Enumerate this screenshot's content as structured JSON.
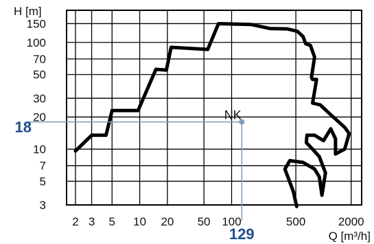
{
  "chart_data": {
    "type": "line",
    "title": "",
    "xlabel": "Q [m³/h]",
    "ylabel": "H [m]",
    "x_scale": "log",
    "y_scale": "log",
    "xlim": [
      1.6,
      2600
    ],
    "ylim": [
      3,
      200
    ],
    "grid": true,
    "x_ticks": [
      {
        "value": 2,
        "label": "2"
      },
      {
        "value": 3,
        "label": "3"
      },
      {
        "value": 5,
        "label": "5"
      },
      {
        "value": 10,
        "label": "10"
      },
      {
        "value": 20,
        "label": "20"
      },
      {
        "value": 50,
        "label": "50"
      },
      {
        "value": 100,
        "label": "100"
      },
      {
        "value": 500,
        "label": "500"
      },
      {
        "value": 2000,
        "label": "2000"
      }
    ],
    "y_ticks": [
      {
        "value": 3,
        "label": "3"
      },
      {
        "value": 5,
        "label": "5"
      },
      {
        "value": 7,
        "label": "7"
      },
      {
        "value": 10,
        "label": "10"
      },
      {
        "value": 20,
        "label": "20"
      },
      {
        "value": 30,
        "label": "30"
      },
      {
        "value": 50,
        "label": "50"
      },
      {
        "value": 70,
        "label": "70"
      },
      {
        "value": 100,
        "label": "100"
      },
      {
        "value": 150,
        "label": "150"
      }
    ],
    "series": [
      {
        "name": "NK",
        "color": "#000000",
        "closed": false,
        "points": [
          [
            2,
            9.6
          ],
          [
            3,
            13.5
          ],
          [
            4.3,
            13.5
          ],
          [
            5,
            23
          ],
          [
            9.6,
            23
          ],
          [
            15,
            56
          ],
          [
            19.5,
            55
          ],
          [
            22,
            90
          ],
          [
            55,
            86
          ],
          [
            72,
            150
          ],
          [
            165,
            147
          ],
          [
            260,
            135
          ],
          [
            400,
            134
          ],
          [
            520,
            127
          ],
          [
            600,
            113
          ],
          [
            640,
            97
          ],
          [
            720,
            94
          ],
          [
            800,
            73
          ],
          [
            740,
            47
          ],
          [
            760,
            45
          ],
          [
            840,
            45
          ],
          [
            760,
            27
          ],
          [
            920,
            26
          ],
          [
            1200,
            21
          ],
          [
            1700,
            16
          ],
          [
            1900,
            14
          ],
          [
            1700,
            10
          ],
          [
            1350,
            9
          ],
          [
            1350,
            12.5
          ],
          [
            1200,
            15.5
          ],
          [
            1000,
            12
          ],
          [
            800,
            13.5
          ],
          [
            660,
            13.5
          ],
          [
            650,
            11.5
          ],
          [
            760,
            10
          ],
          [
            900,
            8.5
          ],
          [
            1050,
            6
          ],
          [
            960,
            3.7
          ],
          [
            900,
            5.5
          ],
          [
            800,
            6.5
          ],
          [
            600,
            7.5
          ],
          [
            430,
            7.8
          ],
          [
            380,
            6.5
          ],
          [
            470,
            4
          ],
          [
            510,
            2.9
          ]
        ]
      }
    ],
    "annotations": [
      {
        "text": "NK",
        "x": 100,
        "y": 18
      },
      {
        "text": "18",
        "axis": "y",
        "value": 18
      },
      {
        "text": "129",
        "axis": "x",
        "value": 129
      }
    ],
    "marker": {
      "x": 129,
      "y": 18,
      "color": "#7f9db8",
      "label_color": "#1f4e8c"
    }
  }
}
